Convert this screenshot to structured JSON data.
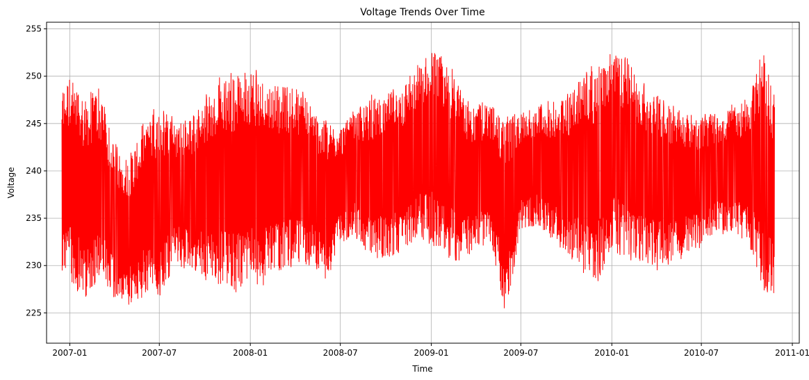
{
  "chart_data": {
    "type": "line",
    "title": "Voltage Trends Over Time",
    "xlabel": "Time",
    "ylabel": "Voltage",
    "x_type": "date",
    "xlim": [
      "2006-11-15",
      "2011-01-15"
    ],
    "ylim": [
      221.8,
      255.7
    ],
    "grid": true,
    "line_color": "#ff0000",
    "x_ticks": [
      "2007-01-01",
      "2007-07-01",
      "2008-01-01",
      "2008-07-01",
      "2009-01-01",
      "2009-07-01",
      "2010-01-01",
      "2010-07-01",
      "2011-01-01"
    ],
    "x_tick_labels": [
      "2007-01",
      "2007-07",
      "2008-01",
      "2008-07",
      "2009-01",
      "2009-07",
      "2010-01",
      "2010-07",
      "2011-01"
    ],
    "y_ticks": [
      225,
      230,
      235,
      240,
      245,
      250,
      255
    ],
    "y_tick_labels": [
      "225",
      "230",
      "235",
      "240",
      "245",
      "250",
      "255"
    ],
    "series": [
      {
        "values_description_free": true,
        "x": [
          "2006-12-16",
          "2007-01-01",
          "2007-02-01",
          "2007-03-01",
          "2007-04-01",
          "2007-05-01",
          "2007-06-01",
          "2007-07-01",
          "2007-08-01",
          "2007-09-01",
          "2007-10-01",
          "2007-11-01",
          "2007-12-01",
          "2008-01-01",
          "2008-02-01",
          "2008-03-01",
          "2008-04-01",
          "2008-05-01",
          "2008-06-01",
          "2008-07-01",
          "2008-08-01",
          "2008-09-01",
          "2008-10-01",
          "2008-11-01",
          "2008-12-01",
          "2009-01-01",
          "2009-02-01",
          "2009-03-01",
          "2009-04-01",
          "2009-05-01",
          "2009-06-01",
          "2009-07-01",
          "2009-08-01",
          "2009-09-01",
          "2009-10-01",
          "2009-11-01",
          "2009-12-01",
          "2010-01-01",
          "2010-02-01",
          "2010-03-01",
          "2010-04-01",
          "2010-05-01",
          "2010-06-01",
          "2010-07-01",
          "2010-08-01",
          "2010-09-01",
          "2010-10-01",
          "2010-11-01",
          "2010-11-26"
        ],
        "min": [
          229.0,
          228.0,
          226.0,
          228.0,
          226.5,
          225.5,
          226.5,
          226.5,
          230.0,
          229.5,
          228.0,
          227.5,
          227.0,
          227.5,
          228.0,
          229.0,
          229.5,
          230.0,
          228.0,
          232.0,
          233.0,
          230.0,
          230.5,
          230.5,
          232.5,
          232.0,
          231.0,
          229.5,
          231.5,
          232.0,
          224.0,
          233.5,
          234.0,
          232.5,
          231.0,
          229.0,
          228.0,
          231.5,
          230.5,
          230.0,
          229.5,
          230.0,
          231.0,
          232.0,
          233.5,
          233.0,
          232.5,
          227.5,
          226.0
        ],
        "max": [
          249.5,
          250.5,
          248.5,
          249.0,
          243.0,
          241.5,
          246.0,
          247.0,
          245.5,
          246.0,
          248.0,
          250.0,
          250.5,
          251.5,
          250.0,
          249.5,
          249.5,
          247.5,
          245.5,
          245.0,
          246.5,
          248.0,
          248.5,
          249.5,
          251.0,
          253.5,
          252.0,
          249.0,
          247.0,
          247.5,
          246.0,
          246.5,
          247.0,
          247.5,
          248.0,
          250.5,
          251.5,
          253.5,
          252.0,
          250.0,
          249.0,
          247.0,
          246.5,
          246.0,
          246.5,
          247.0,
          248.0,
          253.0,
          249.0
        ]
      }
    ]
  }
}
